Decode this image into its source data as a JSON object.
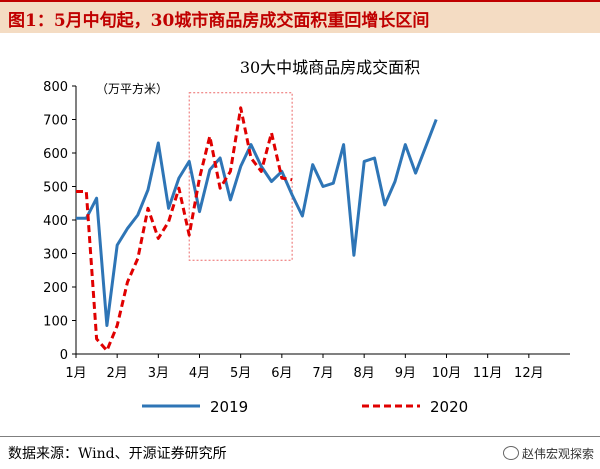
{
  "header": {
    "title": "图1：5月中旬起，30城市商品房成交面积重回增长区间"
  },
  "footer": {
    "source": "数据来源：Wind、开源证券研究所",
    "watermark": "赵伟宏观探索"
  },
  "chart_data": {
    "type": "line",
    "title": "30大中城商品房成交面积",
    "ylabel": "（万平方米）",
    "ylim": [
      0,
      800
    ],
    "yticks": [
      0,
      100,
      200,
      300,
      400,
      500,
      600,
      700,
      800
    ],
    "xlim": [
      1,
      13
    ],
    "xticks": [
      {
        "v": 1,
        "label": "1月"
      },
      {
        "v": 2,
        "label": "2月"
      },
      {
        "v": 3,
        "label": "3月"
      },
      {
        "v": 4,
        "label": "4月"
      },
      {
        "v": 5,
        "label": "5月"
      },
      {
        "v": 6,
        "label": "6月"
      },
      {
        "v": 7,
        "label": "7月"
      },
      {
        "v": 8,
        "label": "8月"
      },
      {
        "v": 9,
        "label": "9月"
      },
      {
        "v": 10,
        "label": "10月"
      },
      {
        "v": 11,
        "label": "11月"
      },
      {
        "v": 12,
        "label": "12月"
      }
    ],
    "series": [
      {
        "name": "2019",
        "color": "#2e75b6",
        "style": "solid",
        "points": [
          [
            1.0,
            405
          ],
          [
            1.25,
            405
          ],
          [
            1.5,
            465
          ],
          [
            1.75,
            85
          ],
          [
            2.0,
            325
          ],
          [
            2.25,
            375
          ],
          [
            2.5,
            415
          ],
          [
            2.75,
            490
          ],
          [
            3.0,
            630
          ],
          [
            3.25,
            435
          ],
          [
            3.5,
            525
          ],
          [
            3.75,
            575
          ],
          [
            4.0,
            425
          ],
          [
            4.25,
            550
          ],
          [
            4.5,
            585
          ],
          [
            4.75,
            460
          ],
          [
            5.0,
            560
          ],
          [
            5.25,
            625
          ],
          [
            5.5,
            560
          ],
          [
            5.75,
            515
          ],
          [
            6.0,
            545
          ],
          [
            6.25,
            475
          ],
          [
            6.5,
            412
          ],
          [
            6.75,
            565
          ],
          [
            7.0,
            500
          ],
          [
            7.25,
            510
          ],
          [
            7.5,
            625
          ],
          [
            7.75,
            295
          ],
          [
            8.0,
            575
          ],
          [
            8.25,
            585
          ],
          [
            8.5,
            445
          ],
          [
            8.75,
            515
          ],
          [
            9.0,
            625
          ],
          [
            9.25,
            540
          ],
          [
            9.5,
            620
          ],
          [
            9.75,
            700
          ]
        ]
      },
      {
        "name": "2020",
        "color": "#e00000",
        "style": "dashed",
        "points": [
          [
            1.0,
            485
          ],
          [
            1.25,
            485
          ],
          [
            1.5,
            45
          ],
          [
            1.75,
            10
          ],
          [
            2.0,
            85
          ],
          [
            2.25,
            215
          ],
          [
            2.5,
            285
          ],
          [
            2.75,
            435
          ],
          [
            3.0,
            345
          ],
          [
            3.25,
            395
          ],
          [
            3.5,
            495
          ],
          [
            3.75,
            355
          ],
          [
            4.0,
            525
          ],
          [
            4.25,
            650
          ],
          [
            4.5,
            495
          ],
          [
            4.75,
            545
          ],
          [
            5.0,
            735
          ],
          [
            5.25,
            585
          ],
          [
            5.5,
            545
          ],
          [
            5.75,
            660
          ],
          [
            6.0,
            525
          ],
          [
            6.25,
            520
          ]
        ]
      }
    ],
    "highlight_box": {
      "x0": 3.75,
      "x1": 6.25,
      "y0": 280,
      "y1": 780,
      "color": "#ec6868"
    },
    "legend": {
      "position": "bottom"
    }
  }
}
